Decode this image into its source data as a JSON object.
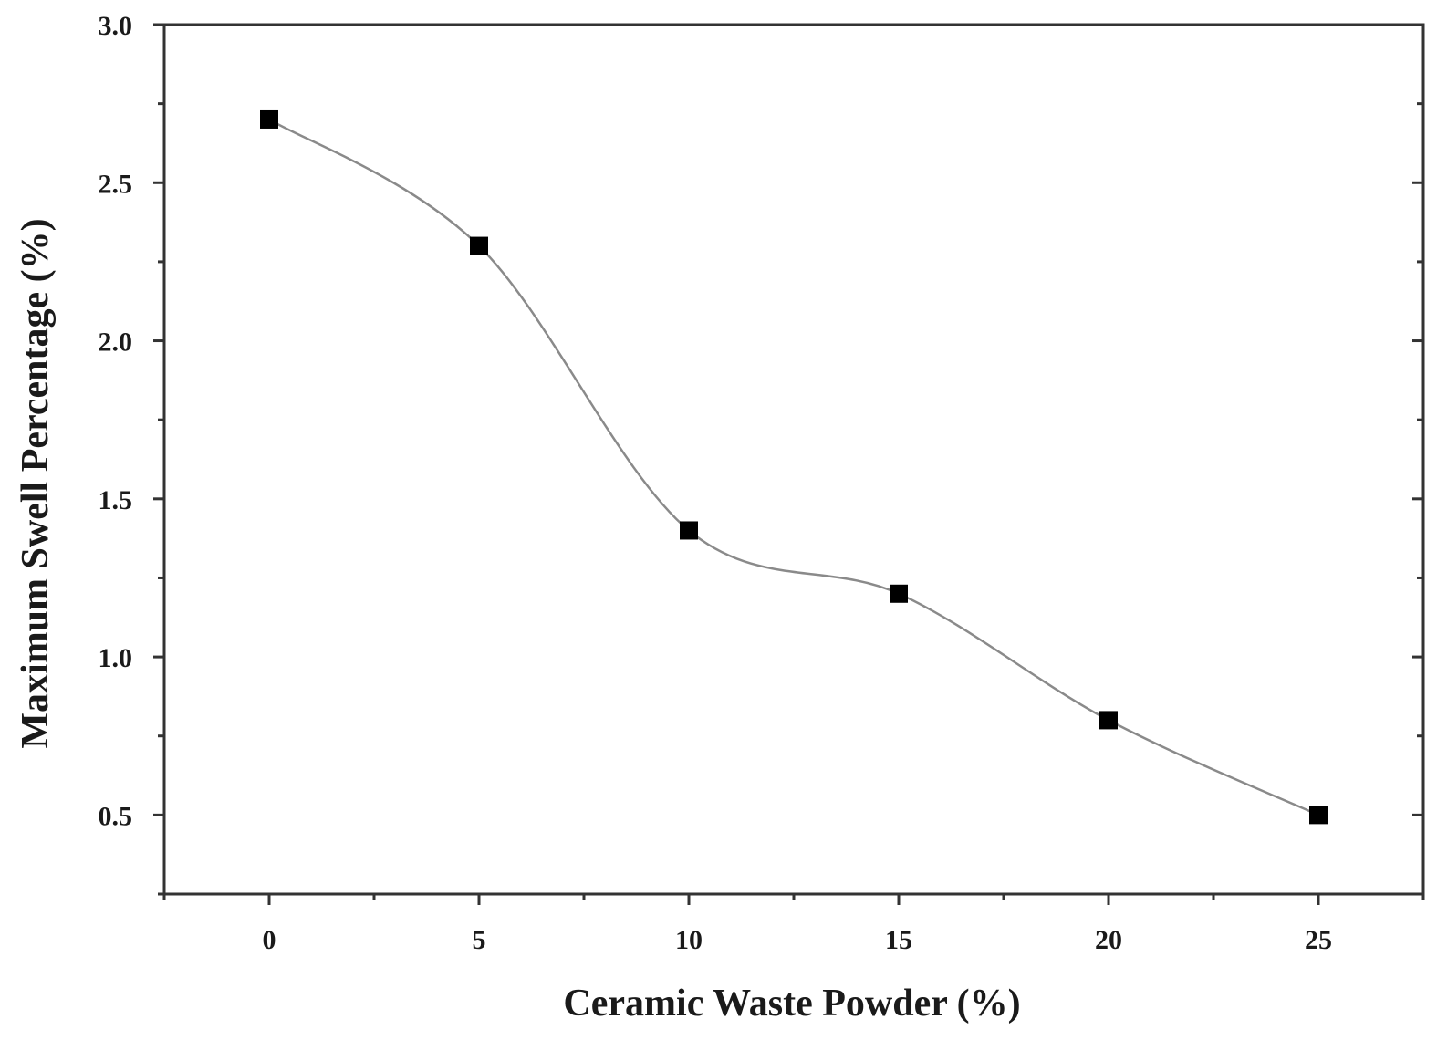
{
  "chart_data": {
    "type": "scatter",
    "title": "",
    "xlabel": "Ceramic Waste Powder (%)",
    "ylabel": "Maximum Swell Percentage (%)",
    "xlim": [
      -2.5,
      27.5
    ],
    "ylim": [
      0.25,
      3.0
    ],
    "x_ticks": [
      0,
      5,
      10,
      15,
      20,
      25
    ],
    "x_tick_labels": [
      "0",
      "5",
      "10",
      "15",
      "20",
      "25"
    ],
    "x_minor_ticks": [
      -2.5,
      2.5,
      7.5,
      12.5,
      17.5,
      22.5,
      27.5
    ],
    "y_ticks": [
      0.5,
      1.0,
      1.5,
      2.0,
      2.5,
      3.0
    ],
    "y_tick_labels": [
      "0.5",
      "1.0",
      "1.5",
      "2.0",
      "2.5",
      "3.0"
    ],
    "y_minor_ticks": [
      0.25,
      0.75,
      1.25,
      1.75,
      2.25,
      2.75
    ],
    "grid": false,
    "legend": "none",
    "series": [
      {
        "marker": "square",
        "line": "smooth",
        "marker_color": "#000000",
        "line_color": "#8a8a8a",
        "x": [
          0,
          5,
          10,
          15,
          20,
          25
        ],
        "y": [
          2.7,
          2.3,
          1.4,
          1.2,
          0.8,
          0.5
        ]
      }
    ]
  }
}
